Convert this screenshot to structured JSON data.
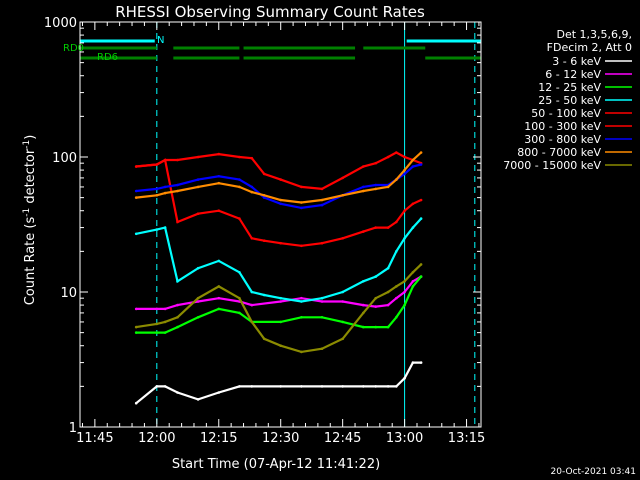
{
  "chart_data": {
    "type": "line",
    "title": "RHESSI Observing Summary Count Rates",
    "ylabel_parts": [
      "Count Rate (s",
      "-1",
      " detector",
      "-1",
      ")"
    ],
    "xlabel": "Start Time (07-Apr-12 11:41:22)",
    "y_scale": "log",
    "ylim": [
      1,
      1000
    ],
    "xlim_minutes": [
      41.4,
      138.5
    ],
    "x_ticks": [
      {
        "label": "11:45",
        "minute": 45
      },
      {
        "label": "12:00",
        "minute": 60
      },
      {
        "label": "12:15",
        "minute": 75
      },
      {
        "label": "12:30",
        "minute": 90
      },
      {
        "label": "12:45",
        "minute": 105
      },
      {
        "label": "13:00",
        "minute": 120
      },
      {
        "label": "13:15",
        "minute": 135
      }
    ],
    "y_ticks": [
      {
        "label": "1",
        "value": 1
      },
      {
        "label": "10",
        "value": 10
      },
      {
        "label": "100",
        "value": 100
      },
      {
        "label": "1000",
        "value": 1000
      }
    ],
    "legend_header": [
      "Det 1,3,5,6,9,",
      "FDecim 2, Att 0"
    ],
    "series": [
      {
        "name": "3 - 6 keV",
        "color": "#ffffff",
        "x": [
          55,
          60,
          62,
          65,
          70,
          75,
          80,
          83,
          90,
          95,
          100,
          105,
          110,
          113,
          116,
          118,
          120,
          122,
          124
        ],
        "y": [
          1.5,
          2,
          2,
          1.8,
          1.6,
          1.8,
          2,
          2,
          2,
          2,
          2,
          2,
          2,
          2,
          2,
          2,
          2.3,
          3,
          3
        ]
      },
      {
        "name": "6 - 12 keV",
        "color": "#ff00ff",
        "x": [
          55,
          60,
          62,
          65,
          70,
          75,
          80,
          83,
          90,
          95,
          100,
          105,
          110,
          113,
          116,
          118,
          120,
          122,
          124
        ],
        "y": [
          7.5,
          7.5,
          7.5,
          8,
          8.5,
          9,
          8.5,
          8,
          8.5,
          9,
          8.5,
          8.5,
          8,
          7.8,
          8,
          9,
          10,
          12,
          13
        ]
      },
      {
        "name": "12 - 25 keV",
        "color": "#00ff00",
        "x": [
          55,
          60,
          62,
          65,
          70,
          75,
          80,
          83,
          90,
          95,
          100,
          105,
          110,
          113,
          116,
          118,
          120,
          122,
          124
        ],
        "y": [
          5,
          5,
          5,
          5.5,
          6.5,
          7.5,
          7,
          6,
          6,
          6.5,
          6.5,
          6,
          5.5,
          5.5,
          5.5,
          6.5,
          8,
          11,
          13
        ]
      },
      {
        "name": "25 - 50 keV",
        "color": "#00ffff",
        "x": [
          55,
          60,
          62,
          65,
          70,
          75,
          80,
          83,
          86,
          90,
          95,
          100,
          105,
          110,
          113,
          116,
          118,
          120,
          122,
          124
        ],
        "y": [
          27,
          29,
          30,
          12,
          15,
          17,
          14,
          10,
          9.5,
          9,
          8.5,
          9,
          10,
          12,
          13,
          15,
          20,
          25,
          30,
          35
        ]
      },
      {
        "name": "50 - 100 keV",
        "color": "#ff0000",
        "x": [
          55,
          60,
          62,
          65,
          70,
          75,
          80,
          83,
          86,
          90,
          95,
          100,
          105,
          110,
          113,
          116,
          118,
          120,
          122,
          124
        ],
        "y": [
          85,
          88,
          95,
          33,
          38,
          40,
          35,
          25,
          24,
          23,
          22,
          23,
          25,
          28,
          30,
          30,
          33,
          40,
          45,
          48
        ]
      },
      {
        "name": "100 - 300 keV",
        "color": "#ff0000",
        "x": [
          55,
          60,
          62,
          65,
          70,
          75,
          80,
          83,
          86,
          90,
          95,
          100,
          105,
          110,
          113,
          116,
          118,
          120,
          122,
          124
        ],
        "y": [
          85,
          88,
          95,
          95,
          100,
          105,
          100,
          98,
          75,
          68,
          60,
          58,
          70,
          85,
          90,
          100,
          108,
          100,
          95,
          90
        ]
      },
      {
        "name": "300 - 800 keV",
        "color": "#0000ff",
        "x": [
          55,
          60,
          62,
          65,
          70,
          75,
          80,
          83,
          86,
          90,
          95,
          100,
          105,
          110,
          113,
          116,
          118,
          120,
          122,
          124
        ],
        "y": [
          56,
          58,
          60,
          62,
          68,
          72,
          68,
          60,
          50,
          45,
          42,
          44,
          52,
          60,
          62,
          62,
          68,
          75,
          85,
          88
        ]
      },
      {
        "name": "800 - 7000 keV",
        "color": "#ff8c00",
        "x": [
          55,
          60,
          62,
          65,
          70,
          75,
          80,
          83,
          86,
          90,
          95,
          100,
          105,
          110,
          113,
          116,
          118,
          120,
          122,
          124
        ],
        "y": [
          50,
          52,
          54,
          56,
          60,
          64,
          60,
          55,
          52,
          48,
          46,
          48,
          52,
          56,
          58,
          60,
          68,
          80,
          95,
          108
        ]
      },
      {
        "name": "7000 - 15000 keV",
        "color": "#8b8b00",
        "x": [
          55,
          60,
          62,
          65,
          70,
          75,
          80,
          83,
          86,
          90,
          95,
          100,
          105,
          110,
          113,
          116,
          118,
          120,
          122,
          124
        ],
        "y": [
          5.5,
          5.8,
          6,
          6.5,
          9,
          11,
          9,
          6,
          4.5,
          4,
          3.6,
          3.8,
          4.5,
          7,
          9,
          10,
          11,
          12,
          14,
          16
        ]
      }
    ],
    "annotations": {
      "rd0_label": "RD0",
      "rd6_label": "RD6",
      "n_label": "N",
      "rd0_segments": [
        [
          41.4,
          60
        ],
        [
          64,
          80
        ],
        [
          81,
          108
        ],
        [
          110,
          125
        ]
      ],
      "rd6_segments": [
        [
          41.4,
          60
        ],
        [
          64,
          80
        ],
        [
          81,
          108
        ],
        [
          125,
          138.5
        ]
      ],
      "n_segments": [
        [
          41.4,
          59.5
        ],
        [
          120.5,
          138.5
        ]
      ]
    },
    "vertical_lines": [
      {
        "minute": 41.4,
        "style": "solid"
      },
      {
        "minute": 60,
        "style": "dashed"
      },
      {
        "minute": 120,
        "style": "solid"
      },
      {
        "minute": 137,
        "style": "dashed"
      }
    ]
  },
  "footer": {
    "timestamp": "20-Oct-2021 03:41"
  }
}
